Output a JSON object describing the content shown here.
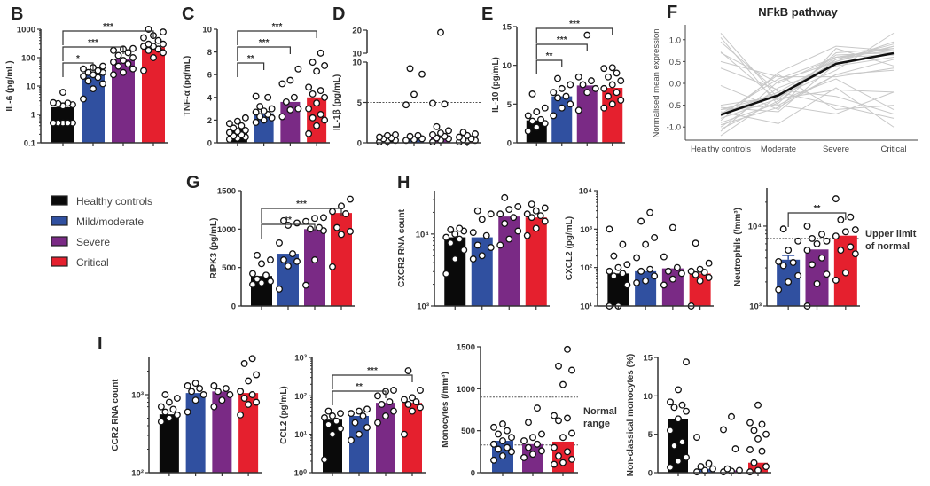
{
  "colors": {
    "healthy": "#0a0a0a",
    "mild": "#3050a0",
    "severe": "#7a2a85",
    "critical": "#e5202e",
    "axis": "#333333",
    "gray_line": "#c8c8c8",
    "mean_line": "#111111"
  },
  "legend": {
    "items": [
      {
        "label": "Healthy controls",
        "group": "healthy"
      },
      {
        "label": "Mild/moderate",
        "group": "mild"
      },
      {
        "label": "Severe",
        "group": "severe"
      },
      {
        "label": "Critical",
        "group": "critical"
      }
    ]
  },
  "chart_data": [
    {
      "id": "B",
      "type": "bar",
      "scale": "log",
      "ylabel": "IL-6 (pg/mL)",
      "ylim": [
        0.1,
        1000
      ],
      "ticks": [
        "0.1",
        "1",
        "10",
        "100",
        "1000"
      ],
      "tick_values": [
        0.1,
        1,
        10,
        100,
        1000
      ],
      "groups": [
        "healthy",
        "mild",
        "severe",
        "critical"
      ],
      "bars": [
        1.8,
        28,
        90,
        230
      ],
      "points": [
        [
          0.5,
          0.5,
          0.5,
          0.5,
          0.5,
          0.5,
          2.2,
          2.5,
          2.4,
          2.0,
          2.6,
          6.0
        ],
        [
          3.5,
          8,
          12,
          15,
          20,
          25,
          30,
          35,
          40,
          45,
          50,
          30,
          22
        ],
        [
          25,
          30,
          40,
          60,
          80,
          100,
          120,
          150,
          180,
          200,
          210,
          70,
          50
        ],
        [
          35,
          100,
          150,
          200,
          250,
          300,
          400,
          500,
          600,
          800,
          1000,
          180,
          250,
          300
        ]
      ],
      "sig": [
        {
          "from": 0,
          "to": 1,
          "label": "*"
        },
        {
          "from": 0,
          "to": 2,
          "label": "***"
        },
        {
          "from": 0,
          "to": 3,
          "label": "***"
        }
      ]
    },
    {
      "id": "C",
      "type": "bar",
      "scale": "linear",
      "ylabel": "TNF-α (pg/mL)",
      "ylim": [
        0,
        10
      ],
      "ticks": [
        "0",
        "2",
        "4",
        "6",
        "8",
        "10"
      ],
      "tick_values": [
        0,
        2,
        4,
        6,
        8,
        10
      ],
      "groups": [
        "healthy",
        "mild",
        "severe",
        "critical"
      ],
      "bars": [
        1.2,
        2.6,
        3.6,
        4.0
      ],
      "points": [
        [
          0.3,
          0.5,
          0.7,
          0.9,
          1.1,
          1.3,
          1.5,
          1.7,
          1.9,
          2.2,
          0.6,
          1.0,
          0.4
        ],
        [
          1.8,
          2.0,
          2.3,
          2.5,
          2.7,
          3.0,
          3.2,
          4.0,
          4.1,
          2.2,
          2.8
        ],
        [
          2.3,
          2.9,
          3.6,
          4.0,
          5.2,
          5.5,
          6.5,
          3.0
        ],
        [
          0.8,
          1.5,
          2.2,
          2.5,
          3.0,
          3.5,
          4.0,
          4.3,
          4.6,
          4.9,
          6.3,
          6.8,
          7.1,
          7.9,
          2.0
        ]
      ],
      "sig": [
        {
          "from": 0,
          "to": 1,
          "label": "**"
        },
        {
          "from": 0,
          "to": 2,
          "label": "***"
        },
        {
          "from": 0,
          "to": 3,
          "label": "***"
        }
      ]
    },
    {
      "id": "D",
      "type": "bar",
      "scale": "broken",
      "ylabel": "IL-1β (pg/mL)",
      "ylim": [
        0,
        10
      ],
      "upper_ylim": [
        10,
        20
      ],
      "ticks": [
        "0",
        "5",
        "10"
      ],
      "tick_values": [
        0,
        5,
        10
      ],
      "upper_ticks": [
        "10",
        "20"
      ],
      "upper_tick_values": [
        10,
        20
      ],
      "reference_line": 5,
      "groups": [
        "healthy",
        "mild",
        "severe",
        "critical"
      ],
      "bars": [
        0.5,
        0.7,
        0.9,
        0.6
      ],
      "points": [
        [
          0.1,
          0.3,
          0.5,
          0.7,
          0.9,
          1.0,
          0.6,
          0.2
        ],
        [
          0.3,
          0.5,
          0.8,
          0.9,
          4.7,
          6.0,
          8.5,
          9.2,
          0.4
        ],
        [
          0.1,
          0.3,
          0.5,
          0.8,
          1.0,
          1.2,
          1.5,
          2.0,
          4.8,
          4.9,
          19.0,
          0.6
        ],
        [
          0.1,
          0.3,
          0.5,
          0.7,
          0.9,
          1.1,
          1.3,
          0.4,
          0.2
        ]
      ],
      "sig": []
    },
    {
      "id": "E",
      "type": "bar",
      "scale": "linear",
      "ylabel": "IL-10 (pg/mL)",
      "ylim": [
        0,
        15
      ],
      "ticks": [
        "0",
        "5",
        "10",
        "15"
      ],
      "tick_values": [
        0,
        5,
        10,
        15
      ],
      "groups": [
        "healthy",
        "mild",
        "severe",
        "critical"
      ],
      "bars": [
        2.9,
        6.0,
        7.4,
        7.1
      ],
      "points": [
        [
          1.5,
          2.0,
          2.5,
          3.0,
          3.5,
          4.0,
          4.5,
          6.3,
          2.8
        ],
        [
          3.5,
          4.5,
          5.0,
          6.0,
          6.5,
          7.0,
          7.5,
          8.3,
          5.8
        ],
        [
          4.2,
          6.5,
          7.5,
          8.0,
          8.5,
          13.9,
          7.0
        ],
        [
          4.5,
          5.0,
          5.5,
          6.5,
          7.0,
          7.5,
          8.0,
          8.5,
          9.0,
          9.6,
          9.7,
          6.0
        ]
      ],
      "sig": [
        {
          "from": 0,
          "to": 1,
          "label": "**"
        },
        {
          "from": 0,
          "to": 2,
          "label": "***"
        },
        {
          "from": 0,
          "to": 3,
          "label": "***"
        }
      ]
    },
    {
      "id": "F",
      "type": "line",
      "title": "NFkB pathway",
      "ylabel": "Normalised mean expression",
      "categories": [
        "Healthy controls",
        "Moderate",
        "Severe",
        "Critical"
      ],
      "ylim": [
        -1.3,
        1.3
      ],
      "ticks": [
        "-1.0",
        "-0.5",
        "0.0",
        "0.5",
        "1.0"
      ],
      "tick_values": [
        -1,
        -0.5,
        0,
        0.5,
        1
      ],
      "mean_series": [
        -0.72,
        -0.27,
        0.45,
        0.69
      ],
      "gene_series": [
        [
          1.15,
          -0.35,
          -0.15,
          -0.2
        ],
        [
          1.05,
          -0.5,
          0.2,
          0.3
        ],
        [
          0.95,
          -0.2,
          -0.5,
          -0.8
        ],
        [
          0.72,
          -0.4,
          0.1,
          -0.6
        ],
        [
          0.7,
          0.0,
          0.6,
          0.8
        ],
        [
          0.35,
          -0.15,
          -0.3,
          -0.7
        ],
        [
          -0.05,
          -0.6,
          0.8,
          0.4
        ],
        [
          -0.5,
          -0.3,
          0.6,
          0.75
        ],
        [
          -0.6,
          -0.25,
          0.5,
          0.85
        ],
        [
          -0.7,
          -0.2,
          0.55,
          0.9
        ],
        [
          -0.8,
          -0.35,
          0.65,
          0.7
        ],
        [
          -0.9,
          -0.45,
          0.7,
          0.8
        ],
        [
          -1.0,
          -0.1,
          0.4,
          0.6
        ],
        [
          -1.1,
          0.05,
          0.5,
          0.95
        ],
        [
          -1.2,
          -0.3,
          0.3,
          1.15
        ],
        [
          -0.55,
          -0.65,
          0.45,
          0.7
        ],
        [
          -0.65,
          -0.92,
          -0.1,
          -1.0
        ],
        [
          -0.75,
          0.2,
          -0.6,
          -0.5
        ],
        [
          -0.85,
          0.25,
          0.85,
          0.75
        ],
        [
          -0.95,
          -0.55,
          0.2,
          0.55
        ],
        [
          -0.6,
          -0.5,
          -0.7,
          -0.2
        ],
        [
          -0.7,
          0.1,
          0.6,
          0.65
        ],
        [
          -1.05,
          -0.4,
          0.55,
          0.85
        ],
        [
          0.5,
          0.15,
          0.15,
          0.35
        ]
      ]
    },
    {
      "id": "G",
      "type": "bar",
      "scale": "linear",
      "ylabel": "RIPK3 (pg/mL)",
      "ylim": [
        0,
        1500
      ],
      "ticks": [
        "0",
        "500",
        "1000",
        "1500"
      ],
      "tick_values": [
        0,
        500,
        1000,
        1500
      ],
      "groups": [
        "healthy",
        "mild",
        "severe",
        "critical"
      ],
      "bars": [
        390,
        680,
        1000,
        1210
      ],
      "points": [
        [
          280,
          300,
          350,
          400,
          420,
          550,
          600,
          660,
          320
        ],
        [
          220,
          520,
          580,
          680,
          820,
          1050,
          1080,
          1110,
          600
        ],
        [
          270,
          600,
          980,
          1000,
          1100,
          1140,
          1150,
          1020
        ],
        [
          510,
          930,
          970,
          1200,
          1230,
          1300,
          1390,
          1020
        ]
      ],
      "sig": [
        {
          "from": 0,
          "to": 2,
          "label": "**"
        },
        {
          "from": 0,
          "to": 3,
          "label": "***"
        }
      ]
    },
    {
      "id": "H1",
      "type": "bar",
      "scale": "log",
      "ylabel": "CXCR2 RNA count",
      "ylim": [
        1000,
        40000
      ],
      "ticks": [
        "10³",
        "10⁴"
      ],
      "tick_values": [
        1000,
        10000
      ],
      "groups": [
        "healthy",
        "mild",
        "severe",
        "critical"
      ],
      "bars": [
        9000,
        9000,
        17500,
        17000
      ],
      "points": [
        [
          2800,
          4500,
          6000,
          7500,
          9000,
          10000,
          11000,
          11500,
          12000,
          8500
        ],
        [
          4500,
          5000,
          6500,
          7000,
          9500,
          10500,
          19000,
          21000,
          16000
        ],
        [
          7000,
          8500,
          11000,
          14000,
          17000,
          19000,
          24000,
          32000,
          22000
        ],
        [
          9500,
          12000,
          15000,
          17000,
          18000,
          19000,
          21000,
          23000,
          26000
        ]
      ],
      "sig": []
    },
    {
      "id": "H2",
      "type": "bar",
      "scale": "log",
      "ylabel": "CXCL2 (pg/mL)",
      "ylim": [
        10,
        10000
      ],
      "ticks": [
        "10¹",
        "10²",
        "10³",
        "10⁴"
      ],
      "tick_values": [
        10,
        100,
        1000,
        10000
      ],
      "groups": [
        "healthy",
        "mild",
        "severe",
        "critical"
      ],
      "bars": [
        70,
        80,
        95,
        70
      ],
      "points": [
        [
          10,
          10,
          35,
          60,
          70,
          80,
          120,
          200,
          400,
          1000,
          100
        ],
        [
          40,
          45,
          60,
          80,
          180,
          400,
          600,
          1600,
          2700,
          90
        ],
        [
          35,
          50,
          80,
          100,
          190,
          1100,
          70
        ],
        [
          10,
          45,
          55,
          65,
          80,
          90,
          130,
          430,
          75
        ]
      ],
      "sig": []
    },
    {
      "id": "H3",
      "type": "bar",
      "scale": "log",
      "ylabel": "Neutrophils (/mm³)",
      "ylim": [
        1000,
        30000
      ],
      "ticks": [
        "10³",
        "10⁴"
      ],
      "tick_values": [
        1000,
        10000
      ],
      "groups": [
        "mild",
        "severe",
        "critical"
      ],
      "bars": [
        3800,
        5100,
        7600
      ],
      "error_bar": [
        {
          "index": 0,
          "upper": 4300
        }
      ],
      "reference_line": 7000,
      "reference_label": [
        "Upper limit",
        "of normal"
      ],
      "points": [
        [
          1600,
          2000,
          2400,
          3200,
          3500,
          3600,
          5000,
          6500,
          9200
        ],
        [
          1000,
          1900,
          2500,
          3300,
          4000,
          5000,
          6000,
          7000,
          7900,
          10000,
          6500
        ],
        [
          2100,
          2600,
          4500,
          5000,
          5500,
          7500,
          8500,
          9000,
          12000,
          13000,
          22000
        ]
      ],
      "sig": [
        {
          "from": 0,
          "to": 2,
          "label": "**"
        }
      ]
    },
    {
      "id": "I1",
      "type": "bar",
      "scale": "log",
      "ylabel": "CCR2 RNA count",
      "ylim": [
        100,
        3000
      ],
      "ticks": [
        "10²",
        "10³"
      ],
      "tick_values": [
        100,
        1000
      ],
      "groups": [
        "healthy",
        "mild",
        "severe",
        "critical"
      ],
      "bars": [
        560,
        1050,
        1100,
        1050
      ],
      "points": [
        [
          450,
          500,
          550,
          600,
          650,
          700,
          800,
          900,
          1000
        ],
        [
          600,
          850,
          1000,
          1100,
          1200,
          1300,
          1400
        ],
        [
          700,
          850,
          1000,
          1100,
          1200,
          1300
        ],
        [
          550,
          750,
          800,
          900,
          1000,
          1100,
          1500,
          1800,
          2500,
          2900
        ]
      ],
      "sig": []
    },
    {
      "id": "I2",
      "type": "bar",
      "scale": "log",
      "ylabel": "CCL2 (pg/mL)",
      "ylim": [
        1,
        1000
      ],
      "ticks": [
        "10⁰",
        "10¹",
        "10²",
        "10³"
      ],
      "tick_values": [
        1,
        10,
        100,
        1000
      ],
      "groups": [
        "healthy",
        "mild",
        "severe",
        "critical"
      ],
      "bars": [
        24,
        30,
        66,
        66
      ],
      "points": [
        [
          2.2,
          10,
          14,
          18,
          22,
          27,
          30,
          35,
          40
        ],
        [
          7,
          10,
          15,
          20,
          30,
          35,
          40,
          45
        ],
        [
          20,
          30,
          40,
          60,
          70,
          100,
          130,
          140
        ],
        [
          10,
          40,
          50,
          60,
          70,
          80,
          90,
          140,
          450
        ]
      ],
      "sig": [
        {
          "from": 0,
          "to": 2,
          "label": "**"
        },
        {
          "from": 0,
          "to": 3,
          "label": "***"
        }
      ]
    },
    {
      "id": "I3",
      "type": "bar",
      "scale": "linear",
      "ylabel": "Monocytes (/mm³)",
      "ylim": [
        0,
        1500
      ],
      "ticks": [
        "0",
        "500",
        "1000",
        "1500"
      ],
      "tick_values": [
        0,
        500,
        1000,
        1500
      ],
      "groups": [
        "mild",
        "severe",
        "critical"
      ],
      "bars": [
        380,
        340,
        370
      ],
      "reference_lines": [
        900,
        330
      ],
      "reference_label": [
        "Normal",
        "range"
      ],
      "points": [
        [
          150,
          200,
          250,
          280,
          300,
          340,
          380,
          420,
          460,
          500,
          540,
          580
        ],
        [
          180,
          220,
          260,
          300,
          340,
          380,
          420,
          460,
          600,
          770
        ],
        [
          100,
          120,
          160,
          200,
          250,
          300,
          420,
          470,
          620,
          650,
          680,
          1050,
          1220,
          1270,
          1470
        ]
      ],
      "sig": []
    },
    {
      "id": "I4",
      "type": "bar",
      "scale": "linear",
      "ylabel": "Non-classical monocytes (%)",
      "ylim": [
        0,
        15
      ],
      "ticks": [
        "0",
        "5",
        "10",
        "15"
      ],
      "tick_values": [
        0,
        5,
        10,
        15
      ],
      "groups": [
        "healthy",
        "mild",
        "severe",
        "critical"
      ],
      "bars": [
        7.0,
        0.5,
        0.3,
        1.3
      ],
      "points": [
        [
          0.7,
          1.5,
          2.0,
          3.5,
          4.0,
          5.5,
          7.0,
          8.0,
          8.5,
          8.8,
          9.2,
          10.8,
          14.4
        ],
        [
          0.1,
          0.3,
          0.5,
          0.8,
          1.2,
          4.6
        ],
        [
          0.1,
          0.2,
          0.3,
          0.5,
          3.1,
          5.6,
          7.3
        ],
        [
          0.1,
          0.3,
          0.8,
          1.3,
          2.8,
          3.0,
          4.4,
          5.0,
          5.5,
          6.3,
          6.5,
          8.8
        ]
      ],
      "sig": []
    }
  ]
}
